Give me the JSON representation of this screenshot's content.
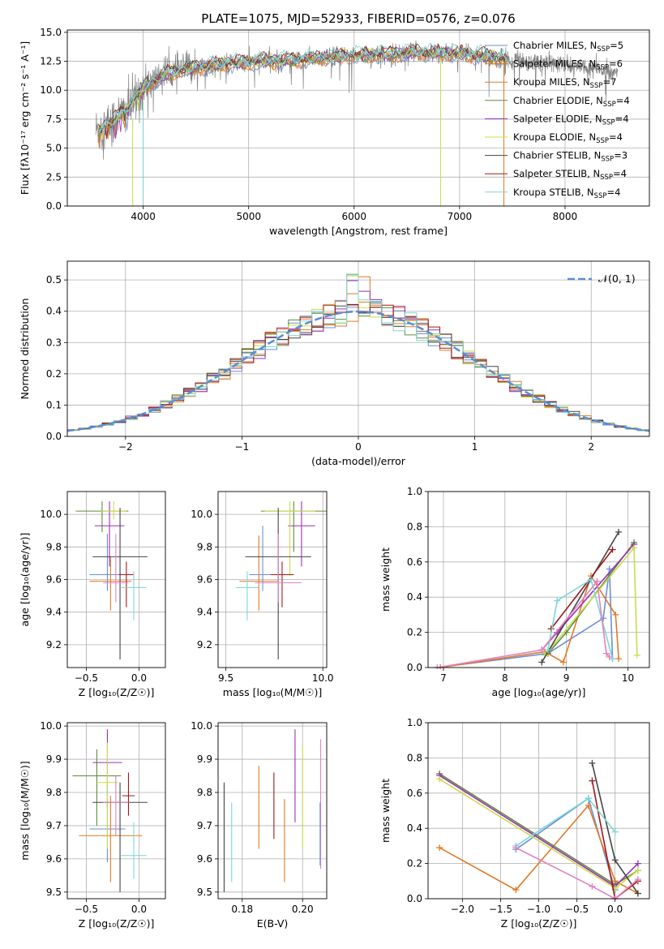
{
  "colors": [
    "#6a8fd6",
    "#e07a28",
    "#de7a28",
    "#5f8c40",
    "#9b2fb8",
    "#c9dc4a",
    "#454545",
    "#a01818",
    "#7dd6d6",
    "#e083c0",
    "#b3c24a"
  ],
  "chart_data": [
    {
      "type": "line",
      "title": "PLATE=1075, MJD=52933, FIBERID=0576, z=0.076",
      "xlabel": "wavelength [Angstrom, rest frame]",
      "ylabel": "Flux [fλ10⁻¹⁷ erg cm⁻² s⁻¹ A⁻¹]",
      "xlim": [
        3280,
        8800
      ],
      "ylim": [
        0,
        15.2
      ],
      "xticks": [
        4000,
        5000,
        6000,
        7000,
        8000
      ],
      "yticks": [
        0.0,
        2.5,
        5.0,
        7.5,
        10.0,
        12.5,
        15.0
      ],
      "ytick_labels": [
        "0.0",
        "2.5",
        "5.0",
        "7.5",
        "10.0",
        "12.5",
        "15.0"
      ],
      "legend_loc": "right",
      "legend": [
        {
          "label": "Chabrier MILES, N",
          "sub": "SSP",
          "tail": "=5",
          "color": "#6a8fd6"
        },
        {
          "label": "Salpeter MILES, N",
          "sub": "SSP",
          "tail": "=6",
          "color": "#e07a28"
        },
        {
          "label": "Kroupa MILES, N",
          "sub": "SSP",
          "tail": "=7",
          "color": "#de7a28"
        },
        {
          "label": "Chabrier ELODIE, N",
          "sub": "SSP",
          "tail": "=4",
          "color": "#5f8c40"
        },
        {
          "label": "Salpeter ELODIE, N",
          "sub": "SSP",
          "tail": "=4",
          "color": "#9b2fb8"
        },
        {
          "label": "Kroupa ELODIE, N",
          "sub": "SSP",
          "tail": "=4",
          "color": "#c9dc4a"
        },
        {
          "label": "Chabrier STELIB, N",
          "sub": "SSP",
          "tail": "=3",
          "color": "#454545"
        },
        {
          "label": "Salpeter STELIB, N",
          "sub": "SSP",
          "tail": "=4",
          "color": "#a01818"
        },
        {
          "label": "Kroupa STELIB, N",
          "sub": "SSP",
          "tail": "=4",
          "color": "#7dd6d6"
        }
      ],
      "continuum": {
        "x": [
          3550,
          3700,
          3850,
          4000,
          4200,
          4500,
          4800,
          5100,
          5400,
          5700,
          6000,
          6300,
          6600,
          6900,
          7200,
          7500,
          7800,
          8100,
          8400,
          8500
        ],
        "y": [
          6.5,
          7.2,
          8.4,
          10.2,
          11.4,
          12.0,
          12.3,
          12.5,
          12.6,
          12.8,
          13.0,
          13.1,
          13.3,
          13.2,
          13.0,
          12.6,
          12.4,
          12.0,
          11.7,
          11.6
        ]
      },
      "data_color": "#808080",
      "drop_lines": [
        {
          "x": 3900,
          "y0": 0,
          "y1": 7.5,
          "color": "#c9dc4a"
        },
        {
          "x": 4000,
          "y0": 0,
          "y1": 9.0,
          "color": "#7dd6d6"
        },
        {
          "x": 6820,
          "y0": 0,
          "y1": 12.8,
          "color": "#c9dc4a"
        },
        {
          "x": 7420,
          "y0": 0,
          "y1": 12.5,
          "color": "#e07a28"
        }
      ]
    },
    {
      "type": "histogram",
      "xlabel": "(data-model)/error",
      "ylabel": "Normed distribution",
      "xlim": [
        -2.5,
        2.5
      ],
      "ylim": [
        0,
        0.56
      ],
      "xticks": [
        -2,
        -1,
        0,
        1,
        2
      ],
      "xtick_labels": [
        "−2",
        "−1",
        "0",
        "1",
        "2"
      ],
      "yticks": [
        0.0,
        0.1,
        0.2,
        0.3,
        0.4,
        0.5
      ],
      "ytick_labels": [
        "0.0",
        "0.1",
        "0.2",
        "0.3",
        "0.4",
        "0.5"
      ],
      "legend_loc": "top-right",
      "legend": [
        {
          "label": "𝒩(0, 1)",
          "color": "#5b8cd6"
        }
      ],
      "bin_width": 0.1,
      "normal": {
        "mu": 0,
        "sigma": 1,
        "color": "#5b8cd6"
      }
    },
    {
      "type": "errorbar",
      "xlabel": "Z [log₁₀(Z/Z☉)]",
      "ylabel": "age  [log₁₀(age/yr)]",
      "xlim": [
        -0.68,
        0.25
      ],
      "ylim": [
        9.06,
        10.14
      ],
      "xticks": [
        -0.5,
        0.0
      ],
      "xtick_labels": [
        "−0.5",
        "0.0"
      ],
      "yticks": [
        9.2,
        9.4,
        9.6,
        9.8,
        10.0
      ],
      "ytick_labels": [
        "9.2",
        "9.4",
        "9.6",
        "9.8",
        "10.0"
      ],
      "points": [
        {
          "x": -0.3,
          "y": 9.63,
          "xerr": 0.17,
          "yerr": [
            0.1,
            0.25
          ],
          "color": "#6a8fd6"
        },
        {
          "x": -0.27,
          "y": 9.59,
          "xerr": 0.2,
          "yerr": [
            0.18,
            0.15
          ],
          "color": "#e07a28"
        },
        {
          "x": -0.35,
          "y": 10.02,
          "xerr": 0.25,
          "yerr": [
            0.13,
            0.06
          ],
          "color": "#5f8c40"
        },
        {
          "x": -0.28,
          "y": 9.93,
          "xerr": 0.14,
          "yerr": [
            0.25,
            0.15
          ],
          "color": "#9b2fb8"
        },
        {
          "x": -0.24,
          "y": 10.02,
          "xerr": 0.12,
          "yerr": [
            0.05,
            0.06
          ],
          "color": "#c9dc4a"
        },
        {
          "x": -0.18,
          "y": 9.74,
          "xerr": 0.26,
          "yerr": [
            0.63,
            0.3
          ],
          "color": "#454545"
        },
        {
          "x": -0.12,
          "y": 9.63,
          "xerr": 0.07,
          "yerr": [
            0.2,
            0.08
          ],
          "color": "#a01818"
        },
        {
          "x": -0.05,
          "y": 9.55,
          "xerr": 0.12,
          "yerr": [
            0.2,
            0.1
          ],
          "color": "#7dd6d6"
        },
        {
          "x": -0.22,
          "y": 9.58,
          "xerr": 0.12,
          "yerr": [
            0.12,
            0.3
          ],
          "color": "#e083c0"
        }
      ]
    },
    {
      "type": "errorbar",
      "xlabel": "mass [log₁₀(M/M☉)]",
      "ylabel": "",
      "xlim": [
        9.46,
        10.02
      ],
      "ylim": [
        9.06,
        10.14
      ],
      "xticks": [
        9.5,
        10.0
      ],
      "xtick_labels": [
        "9.5",
        "10.0"
      ],
      "yticks": [
        9.2,
        9.4,
        9.6,
        9.8,
        10.0
      ],
      "ytick_labels": [
        "9.2",
        "9.4",
        "9.6",
        "9.8",
        "10.0"
      ],
      "points": [
        {
          "x": 9.69,
          "y": 9.63,
          "xerr": 0.07,
          "yerr": [
            0.1,
            0.3
          ],
          "color": "#6a8fd6"
        },
        {
          "x": 9.67,
          "y": 9.59,
          "xerr": 0.1,
          "yerr": [
            0.18,
            0.28
          ],
          "color": "#e07a28"
        },
        {
          "x": 9.85,
          "y": 10.02,
          "xerr": 0.17,
          "yerr": [
            0.25,
            0.06
          ],
          "color": "#5f8c40"
        },
        {
          "x": 9.89,
          "y": 9.93,
          "xerr": 0.07,
          "yerr": [
            0.25,
            0.15
          ],
          "color": "#9b2fb8"
        },
        {
          "x": 9.83,
          "y": 10.02,
          "xerr": 0.13,
          "yerr": [
            0.4,
            0.06
          ],
          "color": "#c9dc4a"
        },
        {
          "x": 9.77,
          "y": 9.74,
          "xerr": 0.17,
          "yerr": [
            0.63,
            0.3
          ],
          "color": "#454545"
        },
        {
          "x": 9.79,
          "y": 9.63,
          "xerr": 0.06,
          "yerr": [
            0.2,
            0.08
          ],
          "color": "#a01818"
        },
        {
          "x": 9.61,
          "y": 9.55,
          "xerr": 0.06,
          "yerr": [
            0.2,
            0.1
          ],
          "color": "#7dd6d6"
        },
        {
          "x": 9.77,
          "y": 9.58,
          "xerr": 0.12,
          "yerr": [
            0.12,
            0.3
          ],
          "color": "#e083c0"
        }
      ]
    },
    {
      "type": "line",
      "xlabel": "age  [log₁₀(age/yr)]",
      "ylabel": "mass weight",
      "xlim": [
        6.75,
        10.35
      ],
      "ylim": [
        0,
        1.0
      ],
      "xticks": [
        7,
        8,
        9,
        10
      ],
      "xtick_labels": [
        "7",
        "8",
        "9",
        "10"
      ],
      "yticks": [
        0.0,
        0.2,
        0.4,
        0.6,
        0.8,
        1.0
      ],
      "ytick_labels": [
        "0.0",
        "0.2",
        "0.4",
        "0.6",
        "0.8",
        "1.0"
      ],
      "series": [
        {
          "color": "#6a8fd6",
          "x": [
            6.9,
            8.7,
            9.6,
            9.7,
            9.75
          ],
          "y": [
            0.0,
            0.08,
            0.28,
            0.56,
            0.05
          ]
        },
        {
          "color": "#e07a28",
          "x": [
            6.95,
            8.65,
            8.95,
            9.4,
            9.8,
            9.85
          ],
          "y": [
            0.0,
            0.09,
            0.03,
            0.52,
            0.3,
            0.05
          ]
        },
        {
          "color": "#5f8c40",
          "x": [
            8.7,
            9.0,
            10.1
          ],
          "y": [
            0.08,
            0.2,
            0.71
          ]
        },
        {
          "color": "#9b2fb8",
          "x": [
            8.6,
            8.85,
            10.1
          ],
          "y": [
            0.1,
            0.2,
            0.7
          ]
        },
        {
          "color": "#c9dc4a",
          "x": [
            8.65,
            10.1,
            10.15
          ],
          "y": [
            0.07,
            0.68,
            0.07
          ]
        },
        {
          "color": "#454545",
          "x": [
            8.6,
            9.85
          ],
          "y": [
            0.03,
            0.77
          ]
        },
        {
          "color": "#a01818",
          "x": [
            8.75,
            9.75
          ],
          "y": [
            0.22,
            0.67
          ]
        },
        {
          "color": "#7dd6d6",
          "x": [
            8.7,
            8.85,
            9.4,
            9.75
          ],
          "y": [
            0.1,
            0.38,
            0.5,
            0.05
          ]
        },
        {
          "color": "#e083c0",
          "x": [
            6.9,
            8.6,
            9.5,
            9.65,
            9.7
          ],
          "y": [
            0.0,
            0.1,
            0.49,
            0.08,
            0.06
          ]
        }
      ]
    },
    {
      "type": "errorbar",
      "xlabel": "Z [log₁₀(Z/Z☉)]",
      "ylabel": "mass [log₁₀(M/M☉)]",
      "xlim": [
        -0.68,
        0.25
      ],
      "ylim": [
        9.48,
        10.01
      ],
      "xticks": [
        -0.5,
        0.0
      ],
      "xtick_labels": [
        "−0.5",
        "0.0"
      ],
      "yticks": [
        9.5,
        9.6,
        9.7,
        9.8,
        9.9,
        10.0
      ],
      "ytick_labels": [
        "9.5",
        "9.6",
        "9.7",
        "9.8",
        "9.9",
        "10.0"
      ],
      "points": [
        {
          "x": -0.3,
          "y": 9.69,
          "xerr": 0.17,
          "yerr": [
            0.1,
            0.14
          ],
          "color": "#6a8fd6"
        },
        {
          "x": -0.27,
          "y": 9.67,
          "xerr": 0.3,
          "yerr": [
            0.14,
            0.12
          ],
          "color": "#e07a28"
        },
        {
          "x": -0.4,
          "y": 9.85,
          "xerr": 0.23,
          "yerr": [
            0.15,
            0.08
          ],
          "color": "#5f8c40"
        },
        {
          "x": -0.3,
          "y": 9.89,
          "xerr": 0.14,
          "yerr": [
            0.14,
            0.1
          ],
          "color": "#9b2fb8"
        },
        {
          "x": -0.3,
          "y": 9.83,
          "xerr": 0.1,
          "yerr": [
            0.2,
            0.12
          ],
          "color": "#c9dc4a"
        },
        {
          "x": -0.18,
          "y": 9.77,
          "xerr": 0.26,
          "yerr": [
            0.27,
            0.06
          ],
          "color": "#454545"
        },
        {
          "x": -0.1,
          "y": 9.79,
          "xerr": 0.06,
          "yerr": [
            0.06,
            0.07
          ],
          "color": "#a01818"
        },
        {
          "x": -0.05,
          "y": 9.61,
          "xerr": 0.12,
          "yerr": [
            0.07,
            0.1
          ],
          "color": "#7dd6d6"
        },
        {
          "x": -0.22,
          "y": 9.77,
          "xerr": 0.12,
          "yerr": [
            0.1,
            0.08
          ],
          "color": "#e083c0"
        }
      ]
    },
    {
      "type": "errorbar",
      "xlabel": "E(B-V)",
      "ylabel": "",
      "xlim": [
        0.172,
        0.208
      ],
      "ylim": [
        9.48,
        10.01
      ],
      "xticks": [
        0.18,
        0.2
      ],
      "xtick_labels": [
        "0.18",
        "0.20"
      ],
      "yticks": [
        9.5,
        9.6,
        9.7,
        9.8,
        9.9,
        10.0
      ],
      "ytick_labels": [
        "9.5",
        "9.6",
        "9.7",
        "9.8",
        "9.9",
        "10.0"
      ],
      "points": [
        {
          "x": 0.174,
          "y": 9.69,
          "yerr": [
            0.19,
            0.14
          ],
          "color": "#454545"
        },
        {
          "x": 0.1765,
          "y": 9.65,
          "yerr": [
            0.12,
            0.12
          ],
          "color": "#7dd6d6"
        },
        {
          "x": 0.1855,
          "y": 9.75,
          "yerr": [
            0.12,
            0.13
          ],
          "color": "#e07a28"
        },
        {
          "x": 0.1905,
          "y": 9.76,
          "yerr": [
            0.1,
            0.1
          ],
          "color": "#a01818"
        },
        {
          "x": 0.194,
          "y": 9.65,
          "yerr": [
            0.12,
            0.13
          ],
          "color": "#e07a28"
        },
        {
          "x": 0.1975,
          "y": 9.85,
          "yerr": [
            0.14,
            0.14
          ],
          "color": "#9b2fb8"
        },
        {
          "x": 0.2,
          "y": 9.79,
          "yerr": [
            0.16,
            0.15
          ],
          "color": "#c9dc4a"
        },
        {
          "x": 0.206,
          "y": 9.77,
          "yerr": [
            0.2,
            0.19
          ],
          "color": "#e083c0"
        },
        {
          "x": 0.2058,
          "y": 9.67,
          "yerr": [
            0.09,
            0.1
          ],
          "color": "#6a8fd6"
        }
      ]
    },
    {
      "type": "line",
      "xlabel": "Z [log₁₀(Z/Z☉)]",
      "ylabel": "mass weight",
      "xlim": [
        -2.45,
        0.45
      ],
      "ylim": [
        0,
        1.0
      ],
      "xticks": [
        -2.0,
        -1.5,
        -1.0,
        -0.5,
        0.0
      ],
      "xtick_labels": [
        "−2.0",
        "−1.5",
        "−1.0",
        "−0.5",
        "0.0"
      ],
      "yticks": [
        0.0,
        0.2,
        0.4,
        0.6,
        0.8,
        1.0
      ],
      "ytick_labels": [
        "0.0",
        "0.2",
        "0.4",
        "0.6",
        "0.8",
        "1.0"
      ],
      "series": [
        {
          "color": "#6a8fd6",
          "x": [
            -1.3,
            -0.35,
            0.0
          ],
          "y": [
            0.28,
            0.57,
            0.05
          ]
        },
        {
          "color": "#e07a28",
          "x": [
            -2.3,
            -1.3,
            -0.35,
            0.0,
            0.3
          ],
          "y": [
            0.29,
            0.05,
            0.53,
            0.1,
            0.03
          ]
        },
        {
          "color": "#5f8c40",
          "x": [
            -2.3,
            0.0,
            0.3
          ],
          "y": [
            0.71,
            0.08,
            0.16
          ]
        },
        {
          "color": "#9b2fb8",
          "x": [
            -2.3,
            0.0,
            0.3
          ],
          "y": [
            0.7,
            0.07,
            0.2
          ]
        },
        {
          "color": "#c9dc4a",
          "x": [
            -2.3,
            0.0,
            0.3
          ],
          "y": [
            0.68,
            0.06,
            0.16
          ]
        },
        {
          "color": "#454545",
          "x": [
            -0.3,
            0.0,
            0.3
          ],
          "y": [
            0.77,
            0.22,
            0.03
          ]
        },
        {
          "color": "#a01818",
          "x": [
            -0.3,
            0.0,
            0.3
          ],
          "y": [
            0.67,
            0.0,
            0.1
          ]
        },
        {
          "color": "#7dd6d6",
          "x": [
            -1.3,
            -0.35,
            0.0
          ],
          "y": [
            0.3,
            0.57,
            0.38
          ]
        },
        {
          "color": "#e083c0",
          "x": [
            -1.3,
            -0.3,
            0.0,
            0.3
          ],
          "y": [
            0.29,
            0.07,
            0.0,
            0.11
          ]
        }
      ]
    }
  ]
}
